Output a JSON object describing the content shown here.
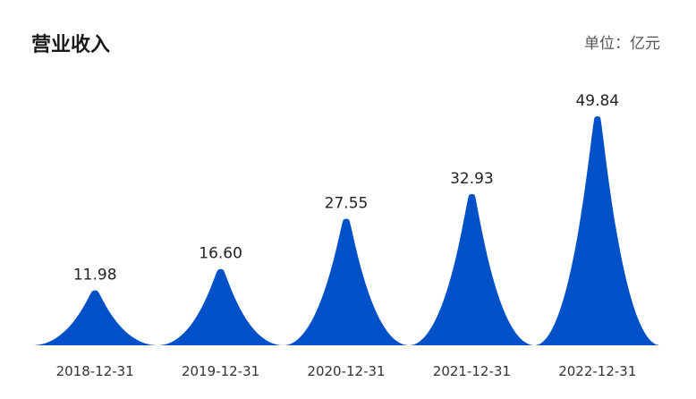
{
  "header": {
    "title": "营业收入",
    "unit": "单位：亿元"
  },
  "chart_data": {
    "type": "bar",
    "mark_style": "peak",
    "color": "#0050c8",
    "categories": [
      "2018-12-31",
      "2019-12-31",
      "2020-12-31",
      "2021-12-31",
      "2022-12-31"
    ],
    "values": [
      11.98,
      16.6,
      27.55,
      32.93,
      49.84
    ],
    "value_labels": [
      "11.98",
      "16.60",
      "27.55",
      "32.93",
      "49.84"
    ],
    "title": "营业收入",
    "xlabel": "",
    "ylabel": "",
    "ylim": [
      0,
      49.84
    ],
    "grid": false,
    "legend": "none"
  }
}
